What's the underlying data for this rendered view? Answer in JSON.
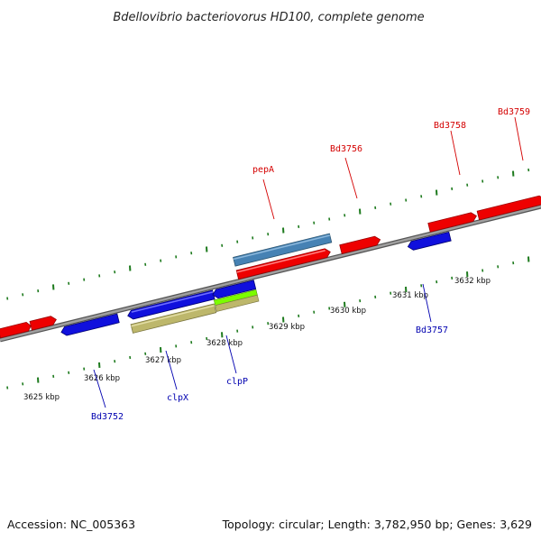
{
  "title": "Bdellovibrio bacteriovorus HD100, complete genome",
  "footer": {
    "accession": "Accession: NC_005363",
    "summary": "Topology: circular; Length: 3,782,950 bp; Genes: 3,629"
  },
  "colors": {
    "backbone": "#8a8a8a",
    "forward_gene": "#ee0000",
    "reverse_gene": "#1010dd",
    "tick": "#1d7a1d",
    "feature_steel": "#4682b4",
    "feature_khaki": "#bdb76b",
    "feature_lime": "#7cfc00"
  },
  "kbp_labels": [
    "3625 kbp",
    "3626 kbp",
    "3627 kbp",
    "3628 kbp",
    "3629 kbp",
    "3630 kbp",
    "3631 kbp",
    "3632 kbp"
  ],
  "gene_labels": {
    "pepA": "pepA",
    "bd3756": "Bd3756",
    "bd3758": "Bd3758",
    "bd3759": "Bd3759",
    "bd3752": "Bd3752",
    "clpX": "clpX",
    "clpP": "clpP",
    "bd3757": "Bd3757"
  }
}
